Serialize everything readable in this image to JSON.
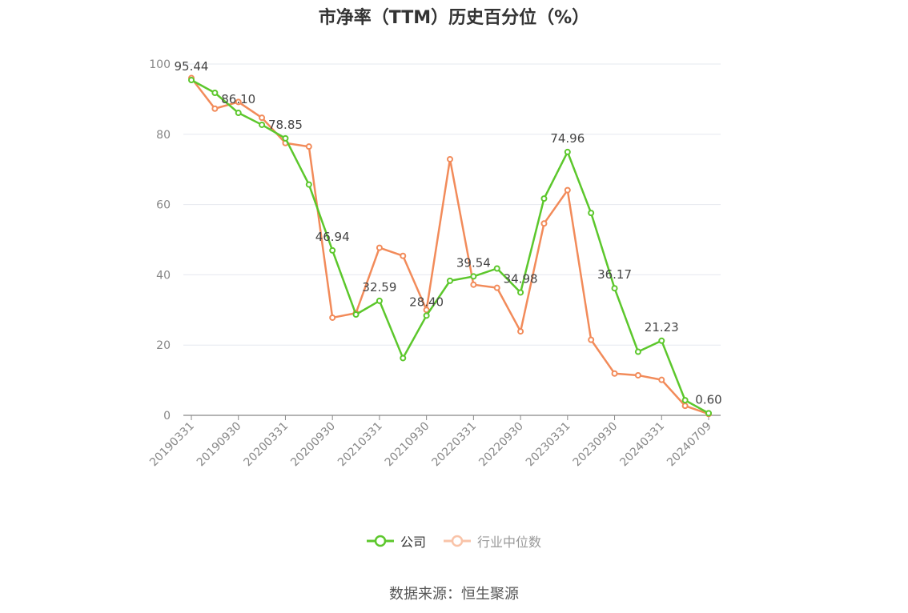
{
  "title": "市净率（TTM）历史百分位（%）",
  "source": "数据来源：恒生聚源",
  "chart_data": {
    "type": "line",
    "ylim": [
      0,
      100
    ],
    "y_ticks": [
      0,
      20,
      40,
      60,
      80,
      100
    ],
    "x_tick_labels": [
      "20190331",
      "20190930",
      "20200331",
      "20200930",
      "20210331",
      "20210930",
      "20220331",
      "20220930",
      "20230331",
      "20230930",
      "20240331",
      "20240709"
    ],
    "x": [
      "20190331",
      "20190630",
      "20190930",
      "20191231",
      "20200331",
      "20200630",
      "20200930",
      "20201231",
      "20210331",
      "20210630",
      "20210930",
      "20211231",
      "20220331",
      "20220630",
      "20220930",
      "20221231",
      "20230331",
      "20230630",
      "20230930",
      "20231231",
      "20240331",
      "20240630",
      "20240709"
    ],
    "series": [
      {
        "name": "公司",
        "color": "#5cc72c",
        "values": [
          95.44,
          91.8,
          86.1,
          82.7,
          78.85,
          65.7,
          46.94,
          28.7,
          32.59,
          16.3,
          28.4,
          38.3,
          39.54,
          41.8,
          34.98,
          61.7,
          74.96,
          57.6,
          36.17,
          18.1,
          21.23,
          4.3,
          0.6
        ],
        "labels": {
          "0": "95.44",
          "2": "86.10",
          "4": "78.85",
          "6": "46.94",
          "8": "32.59",
          "10": "28.40",
          "12": "39.54",
          "14": "34.98",
          "16": "74.96",
          "18": "36.17",
          "20": "21.23",
          "22": "0.60"
        }
      },
      {
        "name": "行业中位数",
        "color": "#f28b5a",
        "values": [
          96.0,
          87.3,
          89.2,
          84.7,
          77.5,
          76.5,
          27.8,
          29.1,
          47.7,
          45.4,
          30.0,
          72.9,
          37.2,
          36.3,
          23.9,
          54.6,
          64.1,
          21.5,
          11.9,
          11.4,
          10.1,
          2.7,
          0.4
        ]
      }
    ]
  }
}
